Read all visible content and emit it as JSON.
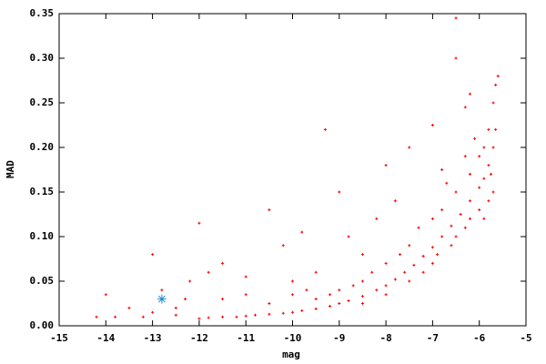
{
  "chart_data": {
    "type": "scatter",
    "x_label": "mag",
    "y_label": "MAD",
    "xlim": [
      -15,
      -5
    ],
    "ylim": [
      0,
      0.35
    ],
    "xticks": [
      -15,
      -14,
      -13,
      -12,
      -11,
      -10,
      -9,
      -8,
      -7,
      -6,
      -5
    ],
    "yticks": [
      {
        "value": 0,
        "label": "0.00"
      },
      0.05,
      {
        "value": 0.1,
        "label": "0.10"
      },
      0.15,
      {
        "value": 0.2,
        "label": "0.20"
      },
      0.25,
      {
        "value": 0.3,
        "label": "0.30"
      },
      0.35
    ],
    "grid": false,
    "series": [
      {
        "color": "#ff0000",
        "marker": "plus",
        "x": [
          -12.0,
          -11.8,
          -11.5,
          -11.2,
          -11.0,
          -10.8,
          -10.5,
          -10.2,
          -10.0,
          -9.8,
          -9.5,
          -9.2,
          -9.0,
          -8.8,
          -8.5,
          -8.2,
          -8.0,
          -7.8,
          -7.6,
          -7.4,
          -7.2,
          -7.0,
          -6.8,
          -6.6,
          -6.4,
          -6.2,
          -6.0,
          -5.9,
          -5.8,
          -5.7,
          -5.65,
          -9.5,
          -9.0,
          -8.5,
          -8.0,
          -7.5,
          -7.0,
          -6.8,
          -6.5,
          -6.2,
          -6.0,
          -5.8,
          -5.7,
          -5.65,
          -5.6,
          -8.5,
          -8.0,
          -7.5,
          -7.0,
          -6.5,
          -6.2,
          -6.0,
          -5.8,
          -5.7,
          -14.2,
          -14.0,
          -13.8,
          -13.5,
          -13.2,
          -13.0,
          -12.8,
          -12.5,
          -12.2,
          -12.0,
          -11.8,
          -11.5,
          -11.0,
          -10.5,
          -10.2,
          -10.0,
          -9.8,
          -9.5,
          -9.3,
          -9.0,
          -8.8,
          -8.5,
          -8.2,
          -8.0,
          -7.8,
          -7.5,
          -7.0,
          -6.8,
          -6.5,
          -6.2,
          -6.5,
          -6.3,
          -11.5,
          -11.0,
          -10.5,
          -10.0,
          -9.7,
          -12.5,
          -13.0,
          -12.3,
          -7.2,
          -6.9,
          -6.6,
          -6.3,
          -5.9,
          -5.75,
          -5.9,
          -6.1,
          -6.3,
          -6.7,
          -7.3,
          -7.7,
          -8.3,
          -8.7,
          -9.2
        ],
        "y": [
          0.008,
          0.009,
          0.01,
          0.01,
          0.011,
          0.012,
          0.013,
          0.014,
          0.015,
          0.017,
          0.019,
          0.022,
          0.025,
          0.028,
          0.033,
          0.04,
          0.045,
          0.052,
          0.06,
          0.068,
          0.078,
          0.088,
          0.1,
          0.112,
          0.125,
          0.14,
          0.155,
          0.165,
          0.18,
          0.2,
          0.22,
          0.03,
          0.04,
          0.05,
          0.07,
          0.09,
          0.12,
          0.13,
          0.15,
          0.17,
          0.19,
          0.22,
          0.25,
          0.27,
          0.28,
          0.025,
          0.035,
          0.05,
          0.07,
          0.1,
          0.12,
          0.13,
          0.14,
          0.15,
          0.01,
          0.035,
          0.01,
          0.02,
          0.01,
          0.08,
          0.04,
          0.02,
          0.05,
          0.115,
          0.06,
          0.07,
          0.055,
          0.13,
          0.09,
          0.05,
          0.105,
          0.06,
          0.22,
          0.15,
          0.1,
          0.08,
          0.12,
          0.18,
          0.14,
          0.2,
          0.225,
          0.175,
          0.345,
          0.26,
          0.3,
          0.245,
          0.03,
          0.035,
          0.025,
          0.035,
          0.04,
          0.012,
          0.015,
          0.03,
          0.06,
          0.08,
          0.09,
          0.11,
          0.12,
          0.17,
          0.2,
          0.21,
          0.19,
          0.16,
          0.11,
          0.08,
          0.06,
          0.045,
          0.035
        ]
      },
      {
        "color": "#1e8fd0",
        "marker": "star",
        "x": [
          -12.8
        ],
        "y": [
          0.03
        ]
      }
    ]
  }
}
